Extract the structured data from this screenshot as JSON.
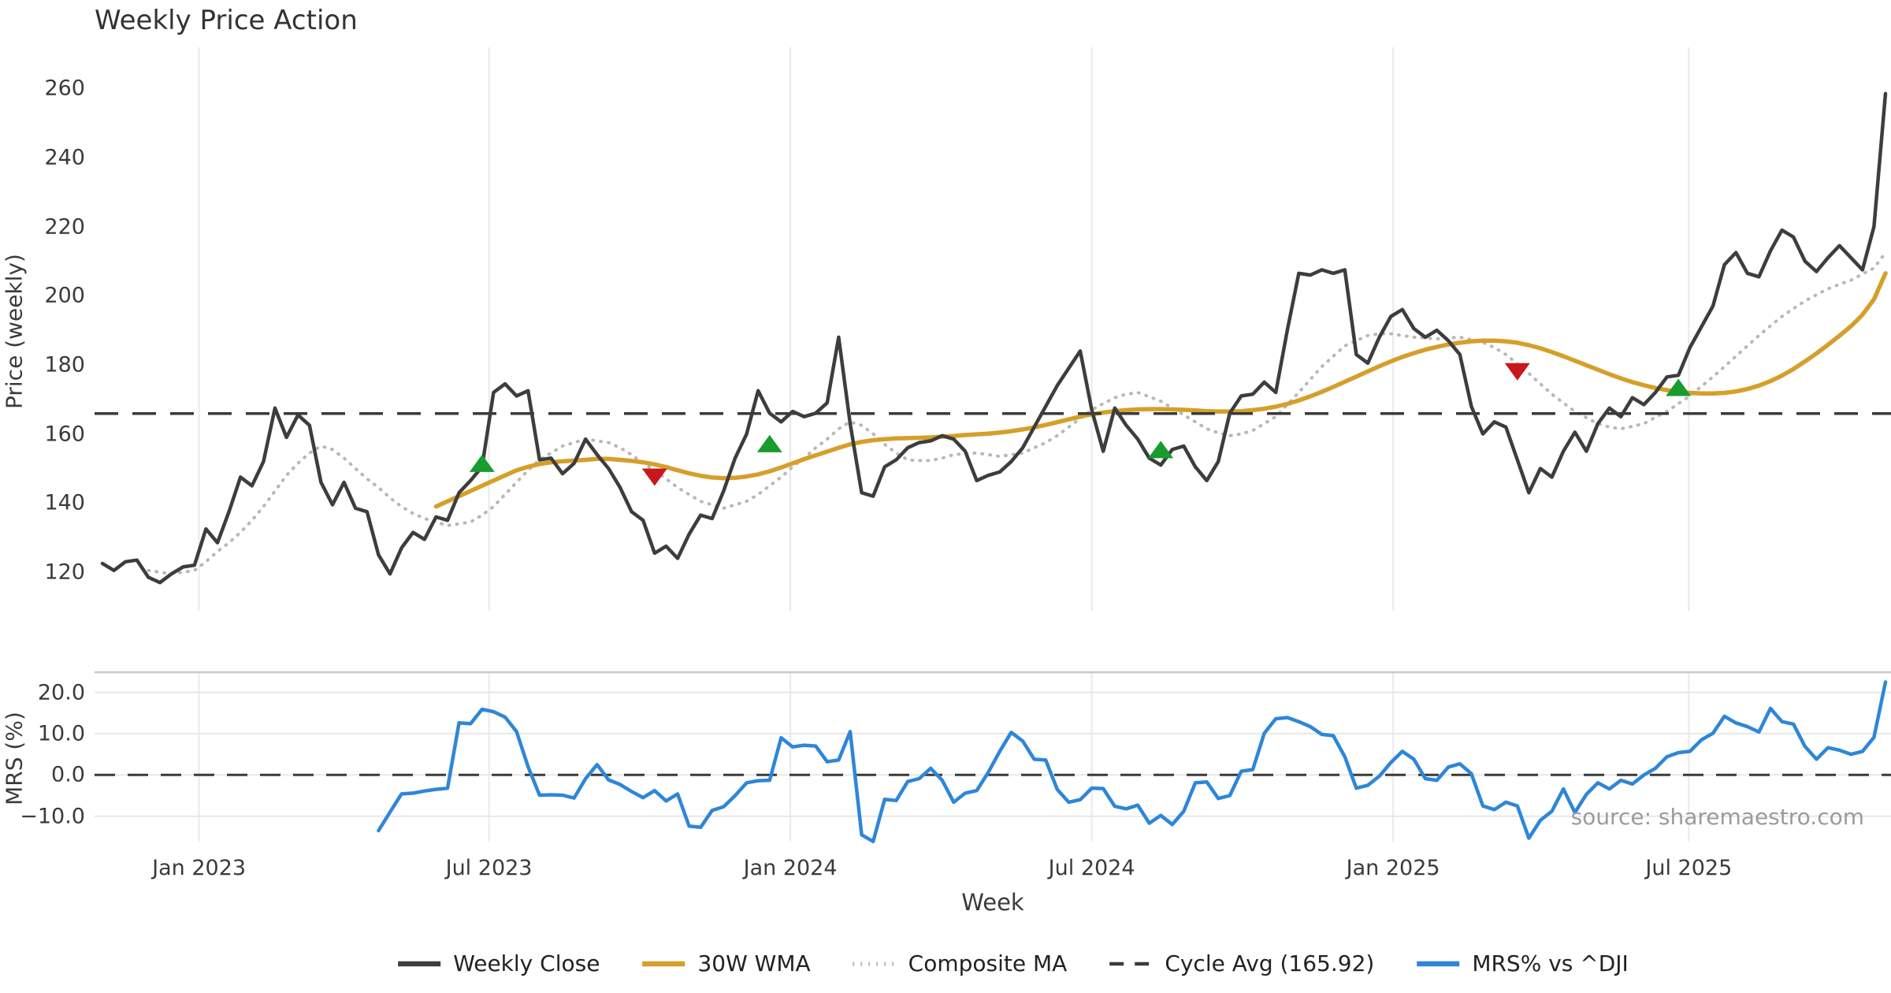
{
  "title": "Weekly Price Action",
  "source_note": "source: sharemaestro.com",
  "price_panel": {
    "ylabel": "Price (weekly)",
    "yticks": [
      120,
      140,
      160,
      180,
      200,
      220,
      240,
      260
    ]
  },
  "mrs_panel": {
    "ylabel": "MRS (%)",
    "yticks": [
      {
        "v": -10,
        "label": "−10.0"
      },
      {
        "v": 0,
        "label": "0.0"
      },
      {
        "v": 10,
        "label": "10.0"
      },
      {
        "v": 20,
        "label": "20.0"
      }
    ]
  },
  "xaxis": {
    "label": "Week",
    "ticks": [
      {
        "week": 8.4,
        "label": "Jan 2023"
      },
      {
        "week": 33.6,
        "label": "Jul 2023"
      },
      {
        "week": 59.8,
        "label": "Jan 2024"
      },
      {
        "week": 86.0,
        "label": "Jul 2024"
      },
      {
        "week": 112.2,
        "label": "Jan 2025"
      },
      {
        "week": 137.9,
        "label": "Jul 2025"
      }
    ]
  },
  "legend": [
    {
      "label": "Weekly Close",
      "swatch": "solid",
      "color": "#3d3d3d"
    },
    {
      "label": "30W WMA",
      "swatch": "solid",
      "color": "#d4a02a"
    },
    {
      "label": "Composite MA",
      "swatch": "dotted",
      "color": "#b8b8b8"
    },
    {
      "label": "Cycle Avg (165.92)",
      "swatch": "dashed",
      "color": "#3a3a3a"
    },
    {
      "label": "MRS% vs ^DJI",
      "swatch": "solid",
      "color": "#2e86d8"
    }
  ],
  "colors": {
    "close": "#3d3d3d",
    "wma": "#d4a02a",
    "composite": "#b8b8b8",
    "cycle_avg": "#3a3a3a",
    "mrs": "#2e86d8",
    "signal_up": "#179c2d",
    "signal_down": "#c9181d",
    "grid_vertical": "#e9e9f0",
    "grid_horizontal": "#e7e7e7",
    "panel_spine": "#c9c9cf",
    "source": "#9b9b9b"
  },
  "chart_data": {
    "type": "line",
    "x_unit": "week",
    "start_date": "2022-11-07",
    "frequency": "weekly",
    "title": "Weekly Price Action",
    "xlabel": "Week",
    "price_ylabel": "Price (weekly)",
    "mrs_ylabel": "MRS (%)",
    "cycle_avg": 165.92,
    "price_axis_range": [
      108,
      272
    ],
    "mrs_axis_range": [
      -16.5,
      25
    ],
    "legend_position": "bottom-center",
    "grid": "vertical-both-panels, horizontal-bottom-panel",
    "series": [
      {
        "name": "Weekly Close",
        "panel": "price",
        "style": "solid",
        "color": "#3d3d3d",
        "start_week": 0,
        "values": [
          122.5,
          120.5,
          123,
          123.5,
          118.5,
          117,
          119.5,
          121.5,
          122,
          132.5,
          128.5,
          137.5,
          147.5,
          145,
          152,
          167.5,
          159,
          165.5,
          162.5,
          146,
          139.5,
          146,
          138.5,
          137.5,
          125,
          119.5,
          127,
          131.5,
          129.5,
          136,
          135,
          143,
          146.5,
          150.5,
          172,
          174.5,
          171,
          172.5,
          152.5,
          153,
          148.5,
          151.5,
          158.5,
          154,
          150,
          144.5,
          137.5,
          135,
          125.5,
          127.5,
          124,
          131,
          136.5,
          135.5,
          143.5,
          153,
          160,
          172.5,
          166,
          163.5,
          166.5,
          165,
          166,
          169,
          188,
          163,
          143,
          142,
          150.5,
          152.5,
          156,
          157.5,
          158,
          159.5,
          158.5,
          155,
          146.5,
          148,
          149,
          152,
          156,
          162,
          168,
          174,
          179,
          184,
          167,
          155,
          167.5,
          162.5,
          158.5,
          153,
          151,
          155.5,
          156.5,
          150.5,
          146.5,
          152,
          166,
          171,
          171.5,
          175,
          172,
          190,
          206.5,
          206,
          207.5,
          206.5,
          207.5,
          183,
          180.5,
          188,
          194,
          196,
          190.5,
          188,
          190,
          187,
          183,
          168,
          160,
          163.5,
          162,
          152.5,
          143,
          150,
          147.5,
          155,
          160.5,
          155,
          163,
          167.5,
          165,
          170.5,
          168.5,
          172,
          176.5,
          177,
          185,
          191,
          197,
          209,
          212.5,
          206.5,
          205.5,
          213,
          219,
          217,
          210,
          207,
          211,
          214.5,
          211,
          207.5,
          220,
          258.5
        ]
      },
      {
        "name": "30W WMA",
        "panel": "price",
        "style": "solid",
        "color": "#d4a02a",
        "start_week": 29,
        "values": [
          139,
          140.5,
          142,
          143.5,
          145,
          146.5,
          148,
          149.5,
          150.5,
          151.3,
          151.8,
          152.1,
          152.3,
          152.5,
          152.8,
          152.8,
          152.5,
          152.2,
          151.8,
          151.2,
          150.4,
          149.5,
          148.6,
          147.9,
          147.4,
          147.2,
          147.3,
          147.7,
          148.3,
          149.2,
          150.3,
          151.5,
          152.7,
          153.8,
          154.9,
          156,
          157,
          157.7,
          158.2,
          158.5,
          158.7,
          158.8,
          158.9,
          159,
          159.2,
          159.4,
          159.7,
          159.9,
          160.1,
          160.4,
          160.8,
          161.3,
          161.9,
          162.6,
          163.4,
          164.2,
          165,
          165.7,
          166.2,
          166.6,
          166.9,
          167.1,
          167.2,
          167.2,
          167.1,
          167,
          166.8,
          166.6,
          166.5,
          166.5,
          166.6,
          166.9,
          167.3,
          167.9,
          168.7,
          169.7,
          170.9,
          172.2,
          173.6,
          175.1,
          176.6,
          178.1,
          179.6,
          181,
          182.3,
          183.4,
          184.4,
          185.2,
          185.9,
          186.4,
          186.8,
          187,
          187,
          186.8,
          186.4,
          185.7,
          184.8,
          183.7,
          182.5,
          181.2,
          179.9,
          178.6,
          177.3,
          176.1,
          175,
          174.1,
          173.3,
          172.7,
          172.2,
          171.9,
          171.7,
          171.7,
          171.9,
          172.3,
          173,
          174,
          175.3,
          176.9,
          178.8,
          181,
          183.3,
          185.8,
          188.4,
          191.2,
          194.5,
          199,
          206.5
        ]
      },
      {
        "name": "Composite MA",
        "panel": "price",
        "style": "dotted",
        "color": "#b8b8b8",
        "start_week": 4,
        "values": [
          120.5,
          120,
          119.5,
          120,
          120.5,
          123,
          126,
          128.5,
          131.5,
          135,
          139,
          143.5,
          148,
          151.5,
          154.5,
          156.5,
          155.5,
          153,
          150,
          147,
          144.5,
          141.5,
          139,
          137,
          135.5,
          134.5,
          133.5,
          134,
          134.5,
          136.5,
          139,
          142.5,
          146,
          149.5,
          152.5,
          154.5,
          156.5,
          157.5,
          158.5,
          158,
          157.5,
          156,
          154,
          151.5,
          149.5,
          147,
          144.5,
          142.5,
          140.5,
          139.5,
          138.5,
          139.5,
          140.5,
          142.5,
          145,
          147.5,
          150.5,
          153,
          156,
          158.5,
          161.5,
          163.5,
          162.5,
          160,
          157,
          154.5,
          152.5,
          152.3,
          152.3,
          153,
          154,
          154.3,
          154.5,
          154,
          153.5,
          154,
          154.5,
          156,
          157.5,
          159.5,
          162,
          164.5,
          167,
          168.8,
          170.5,
          171.5,
          172,
          170.8,
          169.5,
          167.5,
          165.5,
          163.5,
          161.5,
          160.3,
          159.5,
          160,
          161,
          163,
          165,
          168.5,
          172,
          175.8,
          179.5,
          182.5,
          185.5,
          187,
          188.5,
          189,
          189,
          188.5,
          188,
          187.8,
          187.5,
          187.8,
          188,
          187.3,
          186.5,
          185,
          183,
          180.3,
          177.5,
          174.5,
          171.5,
          169,
          166.5,
          164.7,
          163,
          162,
          161.5,
          162.2,
          163,
          164.8,
          166.5,
          168.8,
          171,
          173.8,
          176.5,
          179.5,
          182.5,
          185.5,
          188.5,
          191.3,
          194,
          196.3,
          198.5,
          200.3,
          202,
          203.3,
          204.5,
          206.3,
          208,
          212.5
        ]
      },
      {
        "name": "MRS% vs ^DJI",
        "panel": "mrs",
        "style": "solid",
        "color": "#2e86d8",
        "start_week": 24,
        "values": [
          -13.5,
          -9.0,
          -4.6,
          -4.4,
          -3.9,
          -3.5,
          -3.2,
          12.6,
          12.4,
          15.9,
          15.3,
          14.0,
          10.5,
          2.0,
          -4.9,
          -4.8,
          -4.9,
          -5.6,
          -0.9,
          2.5,
          -1.2,
          -2.3,
          -4.0,
          -5.5,
          -3.8,
          -6.3,
          -4.6,
          -12.4,
          -12.7,
          -8.6,
          -7.7,
          -5.0,
          -1.9,
          -1.4,
          -1.3,
          9.0,
          6.8,
          7.2,
          7.0,
          3.2,
          3.6,
          10.5,
          -14.5,
          -16.1,
          -5.9,
          -6.2,
          -1.6,
          -0.9,
          1.6,
          -1.3,
          -6.6,
          -4.4,
          -3.8,
          0.6,
          5.7,
          10.3,
          8.2,
          3.8,
          3.6,
          -3.5,
          -6.6,
          -6.0,
          -3.2,
          -3.3,
          -7.6,
          -8.2,
          -7.3,
          -11.7,
          -9.8,
          -12.0,
          -8.8,
          -1.9,
          -1.7,
          -5.7,
          -5.0,
          0.9,
          1.3,
          10.1,
          13.6,
          13.9,
          12.9,
          11.7,
          9.8,
          9.5,
          4.4,
          -3.2,
          -2.5,
          -0.3,
          3.0,
          5.7,
          3.8,
          -0.9,
          -1.3,
          1.9,
          2.7,
          0.3,
          -7.5,
          -8.4,
          -6.6,
          -7.5,
          -15.3,
          -11.0,
          -8.8,
          -3.4,
          -9.1,
          -4.7,
          -1.9,
          -3.4,
          -1.3,
          -2.2,
          0.0,
          1.6,
          4.4,
          5.4,
          5.7,
          8.5,
          10.1,
          14.2,
          12.6,
          11.7,
          10.4,
          16.1,
          12.9,
          12.3,
          6.9,
          3.8,
          6.6,
          6.0,
          5.0,
          5.7,
          9.1,
          22.5
        ]
      }
    ],
    "signal_markers": [
      {
        "week": 33,
        "value": 151.5,
        "direction": "up",
        "color": "#179c2d"
      },
      {
        "week": 48,
        "value": 147.5,
        "direction": "down",
        "color": "#c9181d"
      },
      {
        "week": 58,
        "value": 157.2,
        "direction": "up",
        "color": "#179c2d"
      },
      {
        "week": 92,
        "value": 155.5,
        "direction": "up",
        "color": "#179c2d"
      },
      {
        "week": 123,
        "value": 178.0,
        "direction": "down",
        "color": "#c9181d"
      },
      {
        "week": 137,
        "value": 173.5,
        "direction": "up",
        "color": "#179c2d"
      }
    ]
  }
}
